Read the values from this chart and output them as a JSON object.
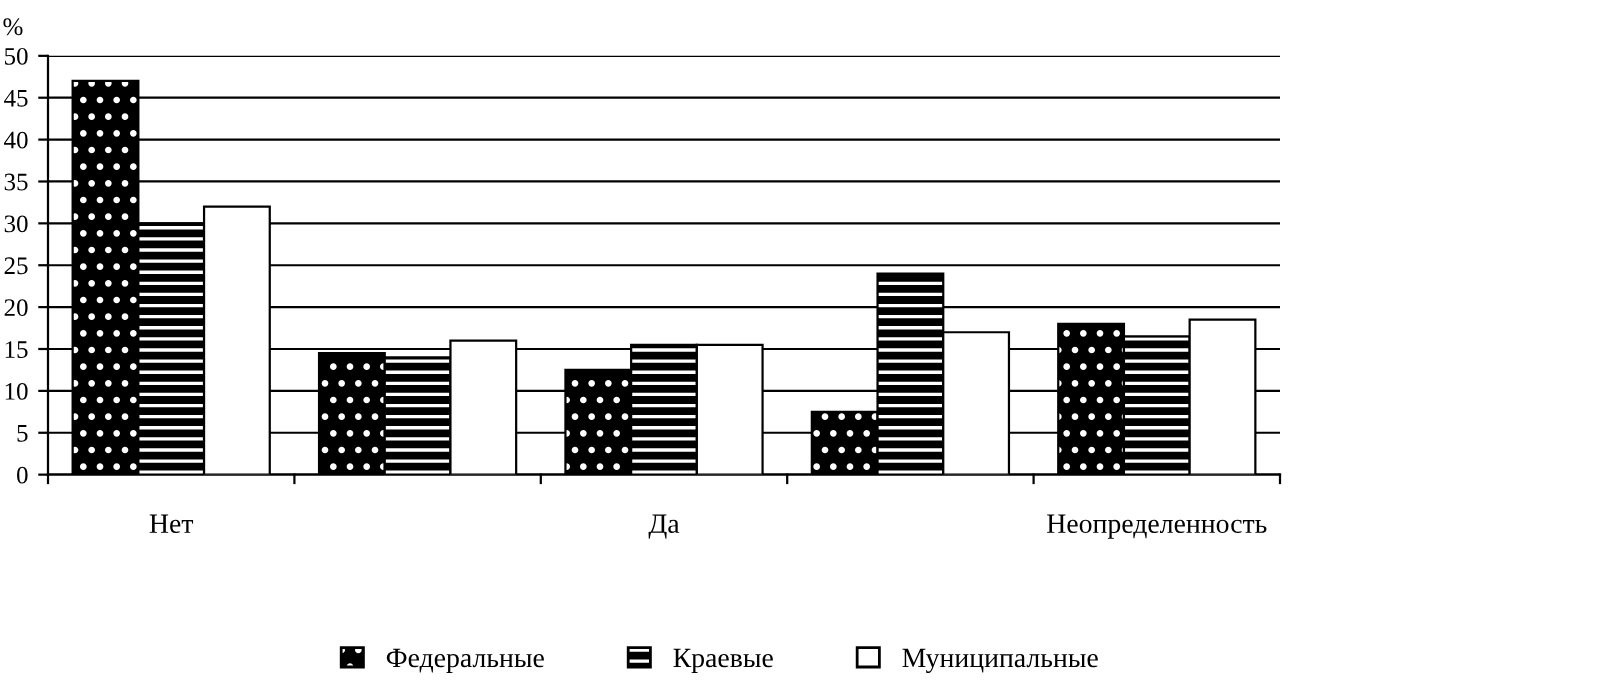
{
  "chart_data": {
    "type": "bar",
    "ylabel": "%",
    "categories": [
      "Нет",
      null,
      "Да",
      null,
      "Неопределенность"
    ],
    "series": [
      {
        "name": "Федеральные",
        "color": "#000000",
        "values": [
          47,
          14.5,
          12.5,
          7.5,
          18
        ]
      },
      {
        "name": "Краевые",
        "color": "#000000",
        "values": [
          30,
          14,
          15.5,
          24,
          16.5
        ]
      },
      {
        "name": "Муниципальные",
        "color": "#ffffff",
        "values": [
          32,
          16,
          15.5,
          17,
          18.5
        ]
      }
    ],
    "ylim": [
      0,
      50
    ],
    "yticks": [
      0,
      5,
      10,
      15,
      20,
      25,
      30,
      35,
      40,
      45,
      50
    ],
    "grid": "y",
    "legend": "bottom"
  }
}
